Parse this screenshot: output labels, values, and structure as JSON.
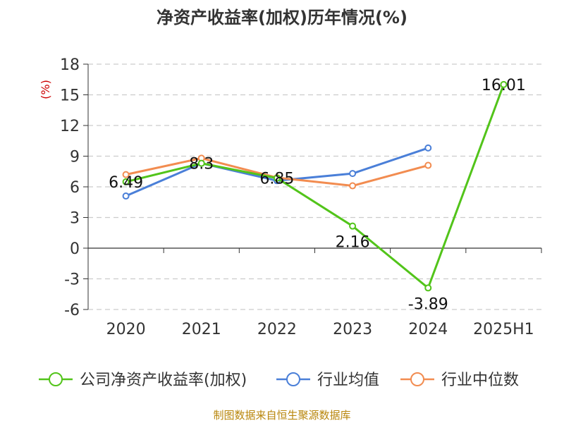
{
  "chart_data": {
    "type": "line",
    "title": "净资产收益率(加权)历年情况(%)",
    "ylabel": "(%)",
    "categories": [
      "2020",
      "2021",
      "2022",
      "2023",
      "2024",
      "2025H1"
    ],
    "ylim": [
      -6,
      18
    ],
    "yticks": [
      18,
      15,
      12,
      9,
      6,
      3,
      0,
      -3,
      -6
    ],
    "grid": true,
    "legend_position": "bottom",
    "series": [
      {
        "name": "公司净资产收益率(加权)",
        "color": "#52c41a",
        "values": [
          6.49,
          8.3,
          6.85,
          2.16,
          -3.89,
          16.01
        ],
        "labels": [
          "6.49",
          "8.3",
          "6.85",
          "2.16",
          "-3.89",
          "16.01"
        ]
      },
      {
        "name": "行业均值",
        "color": "#4a7fd8",
        "values": [
          5.1,
          8.3,
          6.6,
          7.3,
          9.8,
          null
        ]
      },
      {
        "name": "行业中位数",
        "color": "#f28c50",
        "values": [
          7.2,
          8.8,
          6.9,
          6.1,
          8.1,
          null
        ]
      }
    ],
    "source": "制图数据来自恒生聚源数据库"
  }
}
